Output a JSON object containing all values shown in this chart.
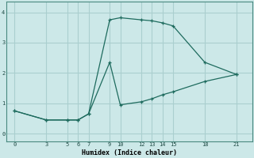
{
  "xlabel": "Humidex (Indice chaleur)",
  "bg_color": "#cce8e8",
  "grid_color": "#aacfcf",
  "line_color": "#1e6b5e",
  "line1_x": [
    0,
    3,
    5,
    6,
    7,
    9,
    10,
    12,
    13,
    14,
    15,
    18,
    21
  ],
  "line1_y": [
    0.75,
    0.45,
    0.45,
    0.45,
    0.65,
    3.75,
    3.82,
    3.75,
    3.72,
    3.65,
    3.55,
    2.35,
    1.95
  ],
  "line2_x": [
    0,
    3,
    5,
    6,
    7,
    9,
    10,
    12,
    13,
    14,
    15,
    18,
    21
  ],
  "line2_y": [
    0.75,
    0.45,
    0.45,
    0.45,
    0.65,
    2.35,
    0.95,
    1.05,
    1.15,
    1.28,
    1.38,
    1.72,
    1.95
  ],
  "xticks": [
    0,
    3,
    5,
    6,
    7,
    9,
    10,
    12,
    13,
    14,
    15,
    18,
    21
  ],
  "yticks": [
    0,
    1,
    2,
    3,
    4
  ],
  "xlim": [
    -0.8,
    22.5
  ],
  "ylim": [
    -0.25,
    4.35
  ]
}
